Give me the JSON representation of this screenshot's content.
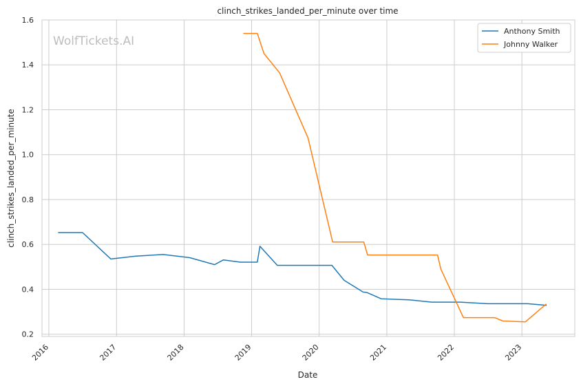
{
  "chart_data": {
    "type": "line",
    "title": "clinch_strikes_landed_per_minute over time",
    "xlabel": "Date",
    "ylabel": "clinch_strikes_landed_per_minute",
    "watermark": "WolfTickets.AI",
    "xlim": [
      "2015-11-25",
      "2023-10-14"
    ],
    "ylim": [
      0.19,
      1.6
    ],
    "x_ticks": [
      "2016",
      "2017",
      "2018",
      "2019",
      "2020",
      "2021",
      "2022",
      "2023"
    ],
    "y_ticks": [
      "0.2",
      "0.4",
      "0.6",
      "0.8",
      "1.0",
      "1.2",
      "1.4",
      "1.6"
    ],
    "grid": true,
    "legend_position": "top-right",
    "series": [
      {
        "name": "Anthony Smith",
        "color": "#1f77b4",
        "points": [
          [
            "2016-02-20",
            0.653
          ],
          [
            "2016-07-01",
            0.653
          ],
          [
            "2016-12-01",
            0.535
          ],
          [
            "2017-04-15",
            0.548
          ],
          [
            "2017-09-10",
            0.555
          ],
          [
            "2018-02-01",
            0.541
          ],
          [
            "2018-06-15",
            0.51
          ],
          [
            "2018-08-01",
            0.531
          ],
          [
            "2018-11-01",
            0.521
          ],
          [
            "2019-02-01",
            0.521
          ],
          [
            "2019-02-15",
            0.592
          ],
          [
            "2019-05-20",
            0.507
          ],
          [
            "2020-03-10",
            0.507
          ],
          [
            "2020-05-15",
            0.44
          ],
          [
            "2020-08-25",
            0.388
          ],
          [
            "2020-09-15",
            0.386
          ],
          [
            "2020-12-01",
            0.358
          ],
          [
            "2021-05-01",
            0.353
          ],
          [
            "2021-09-01",
            0.343
          ],
          [
            "2022-02-01",
            0.343
          ],
          [
            "2022-07-01",
            0.336
          ],
          [
            "2023-02-01",
            0.336
          ],
          [
            "2023-05-15",
            0.329
          ]
        ]
      },
      {
        "name": "Johnny Walker",
        "color": "#ff7f0e",
        "points": [
          [
            "2018-11-17",
            1.54
          ],
          [
            "2019-02-01",
            1.54
          ],
          [
            "2019-03-09",
            1.45
          ],
          [
            "2019-06-01",
            1.365
          ],
          [
            "2019-11-02",
            1.074
          ],
          [
            "2020-03-14",
            0.611
          ],
          [
            "2020-08-29",
            0.611
          ],
          [
            "2020-09-19",
            0.553
          ],
          [
            "2021-10-02",
            0.553
          ],
          [
            "2021-10-20",
            0.49
          ],
          [
            "2022-02-19",
            0.274
          ],
          [
            "2022-08-06",
            0.274
          ],
          [
            "2022-09-20",
            0.259
          ],
          [
            "2023-01-20",
            0.255
          ],
          [
            "2023-05-13",
            0.335
          ]
        ]
      }
    ]
  }
}
